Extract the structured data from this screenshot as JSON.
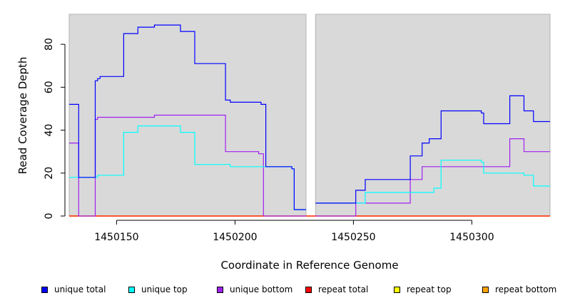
{
  "chart_data": {
    "type": "line",
    "step": true,
    "xlabel": "Coordinate in Reference Genome",
    "ylabel": "Read Coverage Depth",
    "xlim": [
      1450130,
      1450333
    ],
    "ylim": [
      0,
      94
    ],
    "x_ticks": [
      1450150,
      1450200,
      1450250,
      1450300
    ],
    "y_ticks": [
      0,
      20,
      40,
      60,
      80
    ],
    "grid": false,
    "background": "#d9d9d9",
    "gap": [
      1450230,
      1450234
    ],
    "series": [
      {
        "name": "unique total",
        "color": "#0000ff",
        "x": [
          1450130,
          1450134,
          1450141,
          1450142,
          1450143,
          1450153,
          1450159,
          1450166,
          1450177,
          1450183,
          1450196,
          1450198,
          1450211,
          1450213,
          1450224,
          1450225,
          1450230,
          1450234,
          1450251,
          1450255,
          1450274,
          1450279,
          1450282,
          1450287,
          1450304,
          1450305,
          1450316,
          1450322,
          1450326,
          1450333
        ],
        "y": [
          52,
          18,
          63,
          64,
          65,
          85,
          88,
          89,
          86,
          71,
          54,
          53,
          52,
          23,
          22,
          3,
          null,
          6,
          12,
          17,
          28,
          34,
          36,
          49,
          48,
          43,
          56,
          49,
          44,
          44
        ]
      },
      {
        "name": "unique top",
        "color": "#00ffff",
        "x": [
          1450130,
          1450134,
          1450142,
          1450153,
          1450159,
          1450177,
          1450183,
          1450198,
          1450211,
          1450213,
          1450224,
          1450225,
          1450230,
          1450234,
          1450251,
          1450255,
          1450279,
          1450284,
          1450287,
          1450304,
          1450305,
          1450322,
          1450326,
          1450333
        ],
        "y": [
          18,
          18,
          19,
          39,
          42,
          39,
          24,
          23,
          23,
          23,
          22,
          3,
          null,
          6,
          6,
          11,
          11,
          13,
          26,
          25,
          20,
          19,
          14,
          14
        ],
        "hidden_under": "unique total"
      },
      {
        "name": "unique bottom",
        "color": "#a020f0",
        "x": [
          1450130,
          1450134,
          1450141,
          1450142,
          1450166,
          1450196,
          1450210,
          1450212,
          1450230,
          1450234,
          1450251,
          1450274,
          1450279,
          1450316,
          1450322,
          1450333
        ],
        "y": [
          34,
          0,
          45,
          46,
          47,
          30,
          29,
          0,
          null,
          0,
          6,
          17,
          23,
          36,
          30,
          30
        ]
      },
      {
        "name": "repeat total",
        "color": "#ff0000",
        "x": [
          1450130,
          1450333
        ],
        "y": [
          0,
          0
        ]
      },
      {
        "name": "repeat top",
        "color": "#ffff00",
        "x": [
          1450130,
          1450333
        ],
        "y": [
          0,
          0
        ]
      },
      {
        "name": "repeat bottom",
        "color": "#ffa500",
        "x": [
          1450130,
          1450333
        ],
        "y": [
          0,
          0
        ]
      }
    ]
  },
  "legend": [
    {
      "label": "unique total",
      "color": "#0000ff"
    },
    {
      "label": "unique top",
      "color": "#00ffff"
    },
    {
      "label": "unique bottom",
      "color": "#a020f0"
    },
    {
      "label": "repeat total",
      "color": "#ff0000"
    },
    {
      "label": "repeat top",
      "color": "#ffff00"
    },
    {
      "label": "repeat bottom",
      "color": "#ffa500"
    }
  ]
}
